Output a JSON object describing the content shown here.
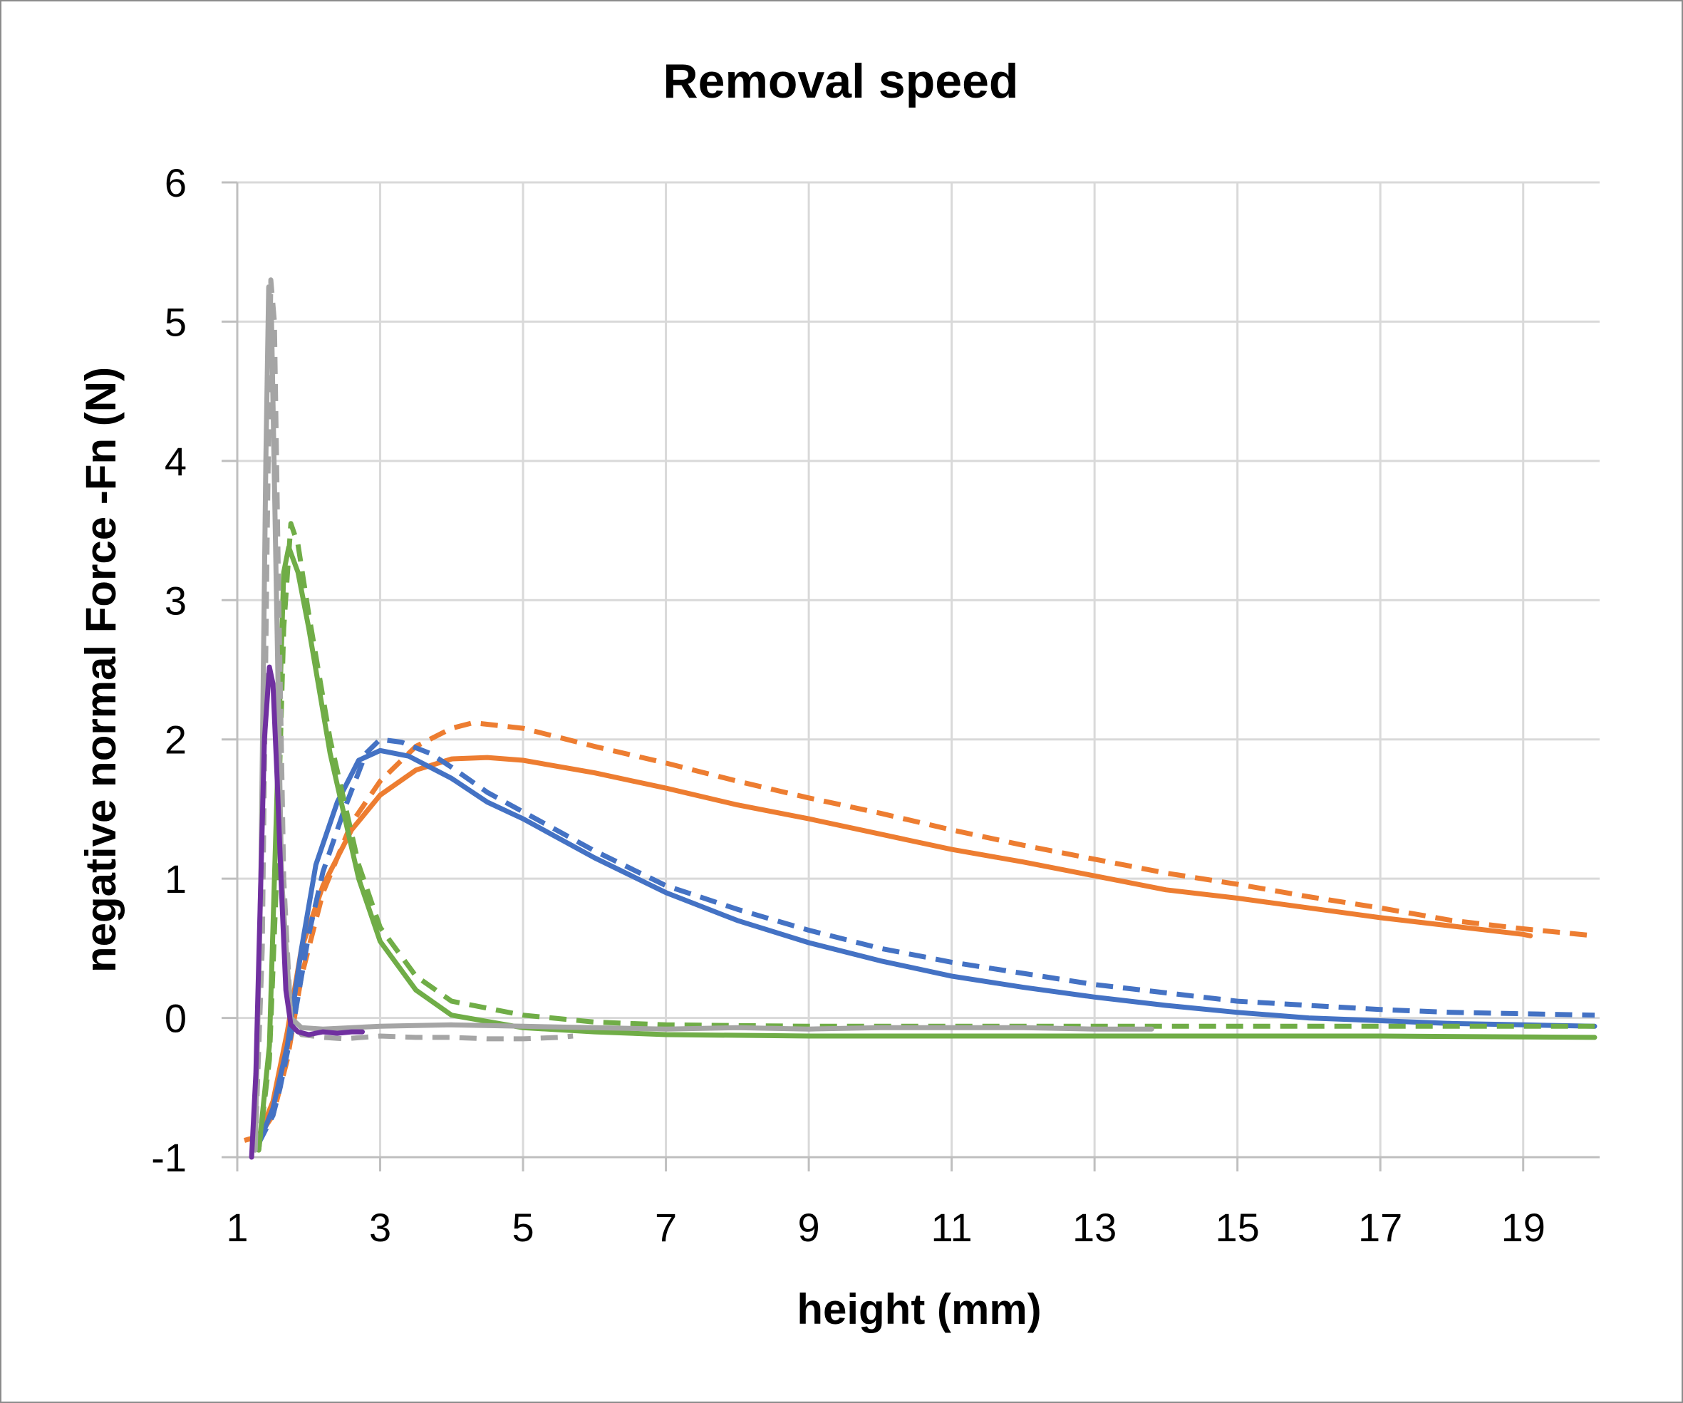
{
  "chart_data": {
    "type": "line",
    "title": "Removal speed",
    "xlabel": "height (mm)",
    "ylabel": "negative normal Force -Fn (N)",
    "xlim": [
      1,
      20
    ],
    "ylim": [
      -1,
      6
    ],
    "x_ticks": [
      1,
      3,
      5,
      7,
      9,
      11,
      13,
      15,
      17,
      19
    ],
    "y_ticks": [
      -1,
      0,
      1,
      2,
      3,
      4,
      5,
      6
    ],
    "grid": true,
    "legend": "none",
    "series": [
      {
        "color": "#ED7D31",
        "style": "dashed",
        "points": [
          [
            1.1,
            -0.88
          ],
          [
            1.3,
            -0.85
          ],
          [
            1.5,
            -0.7
          ],
          [
            1.7,
            -0.3
          ],
          [
            1.9,
            0.3
          ],
          [
            2.2,
            0.9
          ],
          [
            2.6,
            1.4
          ],
          [
            3.0,
            1.7
          ],
          [
            3.5,
            1.95
          ],
          [
            4.0,
            2.08
          ],
          [
            4.3,
            2.12
          ],
          [
            5.0,
            2.08
          ],
          [
            6.0,
            1.95
          ],
          [
            7.0,
            1.83
          ],
          [
            8.0,
            1.7
          ],
          [
            9.0,
            1.58
          ],
          [
            10.0,
            1.47
          ],
          [
            11.0,
            1.35
          ],
          [
            12.0,
            1.24
          ],
          [
            13.0,
            1.14
          ],
          [
            14.0,
            1.04
          ],
          [
            15.0,
            0.96
          ],
          [
            16.0,
            0.87
          ],
          [
            17.0,
            0.79
          ],
          [
            18.0,
            0.7
          ],
          [
            19.0,
            0.64
          ],
          [
            20.0,
            0.59
          ]
        ]
      },
      {
        "color": "#ED7D31",
        "style": "solid",
        "points": [
          [
            1.3,
            -0.85
          ],
          [
            1.5,
            -0.6
          ],
          [
            1.7,
            -0.1
          ],
          [
            1.9,
            0.5
          ],
          [
            2.2,
            0.95
          ],
          [
            2.6,
            1.35
          ],
          [
            3.0,
            1.6
          ],
          [
            3.5,
            1.78
          ],
          [
            4.0,
            1.86
          ],
          [
            4.5,
            1.87
          ],
          [
            5.0,
            1.85
          ],
          [
            6.0,
            1.76
          ],
          [
            7.0,
            1.65
          ],
          [
            8.0,
            1.53
          ],
          [
            9.0,
            1.43
          ],
          [
            10.0,
            1.32
          ],
          [
            11.0,
            1.21
          ],
          [
            12.0,
            1.12
          ],
          [
            13.0,
            1.02
          ],
          [
            14.0,
            0.92
          ],
          [
            15.0,
            0.86
          ],
          [
            16.0,
            0.79
          ],
          [
            17.0,
            0.72
          ],
          [
            18.0,
            0.66
          ],
          [
            19.0,
            0.6
          ],
          [
            19.1,
            0.59
          ]
        ]
      },
      {
        "color": "#4472C4",
        "style": "dashed",
        "points": [
          [
            1.3,
            -0.9
          ],
          [
            1.5,
            -0.7
          ],
          [
            1.6,
            -0.5
          ],
          [
            1.8,
            0.0
          ],
          [
            2.0,
            0.6
          ],
          [
            2.2,
            1.05
          ],
          [
            2.5,
            1.5
          ],
          [
            2.8,
            1.9
          ],
          [
            3.0,
            2.0
          ],
          [
            3.3,
            1.98
          ],
          [
            3.7,
            1.9
          ],
          [
            4.0,
            1.8
          ],
          [
            4.5,
            1.62
          ],
          [
            5.0,
            1.48
          ],
          [
            6.0,
            1.2
          ],
          [
            7.0,
            0.95
          ],
          [
            8.0,
            0.78
          ],
          [
            9.0,
            0.63
          ],
          [
            10.0,
            0.5
          ],
          [
            11.0,
            0.4
          ],
          [
            12.0,
            0.32
          ],
          [
            13.0,
            0.24
          ],
          [
            14.0,
            0.18
          ],
          [
            15.0,
            0.12
          ],
          [
            16.0,
            0.09
          ],
          [
            17.0,
            0.06
          ],
          [
            18.0,
            0.04
          ],
          [
            19.0,
            0.03
          ],
          [
            20.0,
            0.02
          ]
        ]
      },
      {
        "color": "#4472C4",
        "style": "solid",
        "points": [
          [
            1.3,
            -0.9
          ],
          [
            1.5,
            -0.65
          ],
          [
            1.7,
            -0.2
          ],
          [
            1.9,
            0.5
          ],
          [
            2.1,
            1.1
          ],
          [
            2.4,
            1.55
          ],
          [
            2.7,
            1.85
          ],
          [
            3.0,
            1.92
          ],
          [
            3.4,
            1.88
          ],
          [
            4.0,
            1.72
          ],
          [
            4.5,
            1.55
          ],
          [
            5.0,
            1.43
          ],
          [
            6.0,
            1.15
          ],
          [
            7.0,
            0.9
          ],
          [
            8.0,
            0.7
          ],
          [
            9.0,
            0.54
          ],
          [
            10.0,
            0.41
          ],
          [
            11.0,
            0.3
          ],
          [
            12.0,
            0.22
          ],
          [
            13.0,
            0.15
          ],
          [
            14.0,
            0.09
          ],
          [
            15.0,
            0.04
          ],
          [
            16.0,
            0.0
          ],
          [
            17.0,
            -0.02
          ],
          [
            18.0,
            -0.04
          ],
          [
            19.0,
            -0.05
          ],
          [
            20.0,
            -0.06
          ]
        ]
      },
      {
        "color": "#70AD47",
        "style": "dashed",
        "points": [
          [
            1.3,
            -0.95
          ],
          [
            1.45,
            -0.3
          ],
          [
            1.55,
            1.0
          ],
          [
            1.65,
            2.8
          ],
          [
            1.75,
            3.55
          ],
          [
            1.85,
            3.4
          ],
          [
            2.0,
            2.9
          ],
          [
            2.3,
            2.0
          ],
          [
            2.7,
            1.1
          ],
          [
            3.0,
            0.65
          ],
          [
            3.5,
            0.3
          ],
          [
            4.0,
            0.12
          ],
          [
            5.0,
            0.02
          ],
          [
            6.0,
            -0.03
          ],
          [
            7.0,
            -0.05
          ],
          [
            9.0,
            -0.06
          ],
          [
            11.0,
            -0.06
          ],
          [
            13.0,
            -0.06
          ],
          [
            15.0,
            -0.06
          ],
          [
            17.0,
            -0.06
          ],
          [
            20.0,
            -0.06
          ]
        ]
      },
      {
        "color": "#70AD47",
        "style": "solid",
        "points": [
          [
            1.3,
            -0.95
          ],
          [
            1.45,
            -0.2
          ],
          [
            1.55,
            1.5
          ],
          [
            1.65,
            3.2
          ],
          [
            1.72,
            3.38
          ],
          [
            1.85,
            3.2
          ],
          [
            2.0,
            2.8
          ],
          [
            2.3,
            1.9
          ],
          [
            2.7,
            1.0
          ],
          [
            3.0,
            0.55
          ],
          [
            3.5,
            0.2
          ],
          [
            4.0,
            0.02
          ],
          [
            5.0,
            -0.07
          ],
          [
            6.0,
            -0.1
          ],
          [
            7.0,
            -0.12
          ],
          [
            9.0,
            -0.13
          ],
          [
            11.0,
            -0.13
          ],
          [
            13.0,
            -0.13
          ],
          [
            15.0,
            -0.13
          ],
          [
            17.0,
            -0.13
          ],
          [
            20.0,
            -0.14
          ]
        ]
      },
      {
        "color": "#A5A5A5",
        "style": "dashed",
        "points": [
          [
            1.25,
            -0.95
          ],
          [
            1.35,
            0.5
          ],
          [
            1.42,
            3.5
          ],
          [
            1.47,
            5.3
          ],
          [
            1.52,
            5.0
          ],
          [
            1.58,
            3.0
          ],
          [
            1.65,
            1.0
          ],
          [
            1.75,
            0.0
          ],
          [
            1.9,
            -0.12
          ],
          [
            2.2,
            -0.14
          ],
          [
            2.5,
            -0.15
          ],
          [
            3.0,
            -0.13
          ],
          [
            3.5,
            -0.14
          ],
          [
            4.0,
            -0.14
          ],
          [
            4.5,
            -0.15
          ],
          [
            5.0,
            -0.15
          ],
          [
            5.5,
            -0.14
          ],
          [
            5.7,
            -0.13
          ]
        ]
      },
      {
        "color": "#A5A5A5",
        "style": "solid",
        "points": [
          [
            1.25,
            -0.95
          ],
          [
            1.33,
            1.0
          ],
          [
            1.4,
            4.0
          ],
          [
            1.44,
            5.25
          ],
          [
            1.48,
            5.0
          ],
          [
            1.55,
            3.0
          ],
          [
            1.62,
            1.0
          ],
          [
            1.75,
            0.0
          ],
          [
            1.9,
            -0.07
          ],
          [
            2.2,
            -0.08
          ],
          [
            3.0,
            -0.06
          ],
          [
            4.0,
            -0.05
          ],
          [
            5.0,
            -0.06
          ],
          [
            6.0,
            -0.07
          ],
          [
            7.0,
            -0.08
          ],
          [
            8.0,
            -0.07
          ],
          [
            9.0,
            -0.08
          ],
          [
            10.0,
            -0.07
          ],
          [
            11.0,
            -0.07
          ],
          [
            12.0,
            -0.07
          ],
          [
            13.0,
            -0.08
          ],
          [
            13.8,
            -0.08
          ]
        ]
      },
      {
        "color": "#7030A0",
        "style": "solid",
        "points": [
          [
            1.2,
            -1.0
          ],
          [
            1.26,
            -0.4
          ],
          [
            1.32,
            0.8
          ],
          [
            1.38,
            2.0
          ],
          [
            1.45,
            2.52
          ],
          [
            1.5,
            2.4
          ],
          [
            1.56,
            1.7
          ],
          [
            1.62,
            0.9
          ],
          [
            1.68,
            0.2
          ],
          [
            1.75,
            -0.05
          ],
          [
            1.85,
            -0.1
          ],
          [
            2.0,
            -0.12
          ],
          [
            2.2,
            -0.1
          ],
          [
            2.4,
            -0.11
          ],
          [
            2.6,
            -0.1
          ],
          [
            2.75,
            -0.1
          ]
        ]
      }
    ]
  }
}
